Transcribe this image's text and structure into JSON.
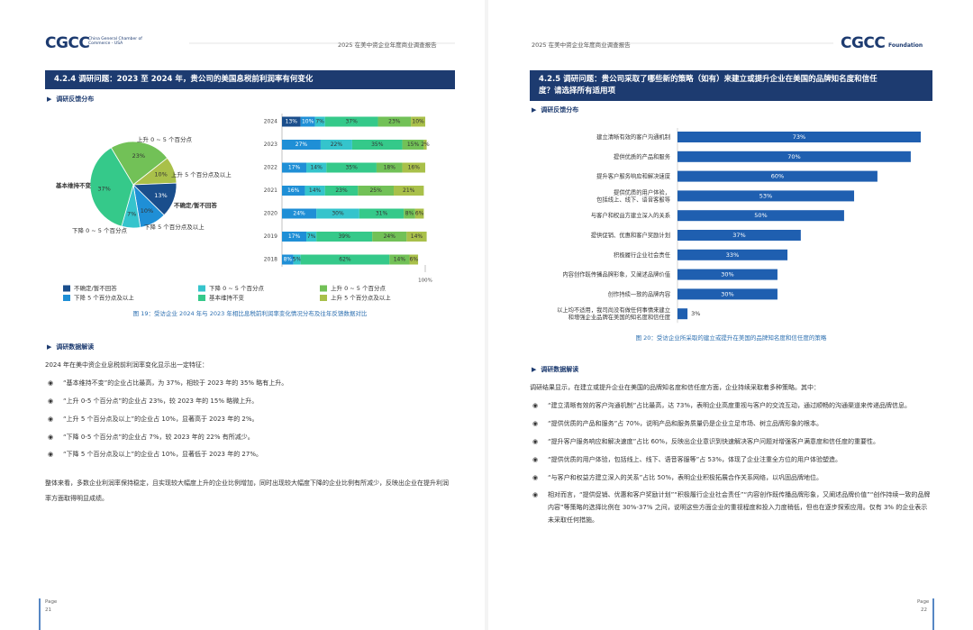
{
  "left_page": {
    "header": {
      "logo": "CGCC",
      "logo_subtitle": "China General Chamber of Commerce - USA",
      "report_title": "2025 在美中资企业年度商业调查报告"
    },
    "section_title": "4.2.4 调研问题：2023 至 2024 年，贵公司的美国息税前利润率有何变化",
    "subheading": "调研反馈分布",
    "pie_chart": {
      "type": "pie",
      "categories": [
        "上升 0 ~ 5 个百分点",
        "上升 5 个百分点及以上",
        "不确定/暂不回答",
        "下降 5 个百分点及以上",
        "下降 0 ~ 5 个百分点",
        "基本维持不变"
      ],
      "values": [
        23,
        10,
        13,
        10,
        7,
        37
      ],
      "value_labels": [
        "23%",
        "10%",
        "13%",
        "10%",
        "7%",
        "37%"
      ],
      "colors": [
        "#72c157",
        "#a9c04a",
        "#1a4e8c",
        "#1f8fd6",
        "#35c4cc",
        "#35c98a"
      ]
    },
    "stacked_chart": {
      "type": "stacked_bar",
      "categories": [
        "2024",
        "2023",
        "2022",
        "2021",
        "2020",
        "2019",
        "2018"
      ],
      "series": [
        {
          "name": "不确定/暂不回答",
          "color": "#1a4e8c",
          "values": [
            13,
            null,
            null,
            null,
            null,
            null,
            null
          ],
          "value_labels": [
            "13%",
            null,
            null,
            null,
            null,
            null,
            null
          ]
        },
        {
          "name": "下降 5 个百分点及以上",
          "color": "#1f8fd6",
          "values": [
            10,
            27,
            17,
            16,
            24,
            17,
            8
          ],
          "value_labels": [
            "10%",
            "27%",
            "17%",
            "16%",
            "24%",
            "17%",
            "8%"
          ]
        },
        {
          "name": "下降 0 ~ 5 个百分点",
          "color": "#35c4cc",
          "values": [
            7,
            22,
            14,
            14,
            30,
            7,
            5
          ],
          "value_labels": [
            "7%",
            "22%",
            "14%",
            "14%",
            "30%",
            "7%",
            "5%"
          ]
        },
        {
          "name": "基本维持不变",
          "color": "#35c98a",
          "values": [
            37,
            35,
            35,
            23,
            31,
            39,
            62
          ],
          "value_labels": [
            "37%",
            "35%",
            "35%",
            "23%",
            "31%",
            "39%",
            "62%"
          ]
        },
        {
          "name": "上升 0 ~ 5 个百分点",
          "color": "#72c157",
          "values": [
            23,
            15,
            18,
            25,
            8,
            24,
            14
          ],
          "value_labels": [
            "23%",
            "15%",
            "18%",
            "25%",
            "8%",
            "24%",
            "14%"
          ]
        },
        {
          "name": "上升 5 个百分点及以上",
          "color": "#a9c04a",
          "values": [
            10,
            2,
            16,
            21,
            6,
            14,
            6
          ],
          "value_labels": [
            "10%",
            "2%",
            "16%",
            "21%",
            "6%",
            "14%",
            "6%"
          ]
        }
      ],
      "xlim": [
        0,
        100
      ],
      "xticks": [
        {
          "value": 100,
          "label": "100%"
        }
      ]
    },
    "caption": "图 19：受访企业 2024 年与 2023 年相比息税前利润率变化情况分布及往年反馈数据对比",
    "analysis_heading": "调研数据解读",
    "intro": "2024 年在美中资企业息税前利润率变化显示出一定特征：",
    "bullets": [
      "“基本维持不变”的企业占比最高，为 37%，相较于 2023 年的 35% 略有上升。",
      "“上升 0-5 个百分点”的企业占 23%，较 2023 年的 15% 略微上升。",
      "“上升 5 个百分点及以上”的企业占 10%，显著高于 2023 年的 2%。",
      "“下降 0-5 个百分点”的企业占 7%，较 2023 年的 22% 有所减少。",
      "“下降 5 个百分点及以上”的企业占 10%，显著低于 2023 年的 27%。"
    ],
    "conclusion": "整体来看，多数企业利润率保持稳定，且实现较大幅度上升的企业比例增加，同时出现较大幅度下降的企业比例有所减少，反映出企业在提升利润率方面取得明显成绩。",
    "footer": {
      "page_label": "Page",
      "page_number": "21"
    }
  },
  "right_page": {
    "header": {
      "report_title": "2025 在美中资企业年度商业调查报告",
      "logo": "CGCC",
      "logo_subtitle": "Foundation"
    },
    "section_title": "4.2.5 调研问题：贵公司采取了哪些新的策略（如有）来建立或提升企业在美国的品牌知名度和信任度？请选择所有适用项",
    "subheading": "调研反馈分布",
    "bar_chart": {
      "type": "hbar",
      "color": "#1f5fb0",
      "categories": [
        "建立清晰有效的客户沟通机制",
        "提供优质的产品和服务",
        "提升客户服务响应和解决速度",
        "提供优质的用户体验，包括线上、线下、语音客服等",
        "与客户和权益方建立深入的关系",
        "提供促销、优惠和客户奖励计划",
        "积极履行企业社会责任",
        "内容创作既传播品牌形象，又阐述品牌价值",
        "创作持续一致的品牌内容",
        "以上均不适用，我司尚没有做任何事情来建立和增强企业品牌在美国的知名度和信任度"
      ],
      "values": [
        73,
        70,
        60,
        53,
        50,
        37,
        33,
        30,
        30,
        3
      ],
      "value_labels": [
        "73%",
        "70%",
        "60%",
        "53%",
        "50%",
        "37%",
        "33%",
        "30%",
        "30%",
        "3%"
      ]
    },
    "caption": "图 20：受访企业所采取的建立或提升在美国的品牌知名度和信任度的策略",
    "analysis_heading": "调研数据解读",
    "intro": "调研结果显示，在建立或提升企业在美国的品牌知名度和信任度方面，企业持续采取着多种策略。其中：",
    "bullets": [
      "“建立清晰有效的客户沟通机制”占比最高，达 73%，表明企业高度重视与客户的交流互动，通过顺畅的沟通渠道来传递品牌信息。",
      "“提供优质的产品和服务”占 70%，说明产品和服务质量仍是企业立足市场、树立品牌形象的根本。",
      "“提升客户服务响应和解决速度”占比 60%，反映出企业意识到快速解决客户问题对增强客户满意度和信任度的重要性。",
      "“提供优质的用户体验，包括线上、线下、语音客服等”占 53%，体现了企业注重全方位的用户体验塑造。",
      "“与客户和权益方建立深入的关系”占比 50%，表明企业积极拓展合作关系网络，以巩固品牌地位。",
      "相对而言，“提供促销、优惠和客户奖励计划”“积极履行企业社会责任”“内容创作既传播品牌形象，又阐述品牌价值”“创作持续一致的品牌内容”等策略的选择比例在 30%-37% 之间，说明这些方面企业的重视程度和投入力度稍低，但也在逐步探索应用。仅有 3% 的企业表示未采取任何措施。"
    ],
    "footer": {
      "page_label": "Page",
      "page_number": "22"
    }
  }
}
